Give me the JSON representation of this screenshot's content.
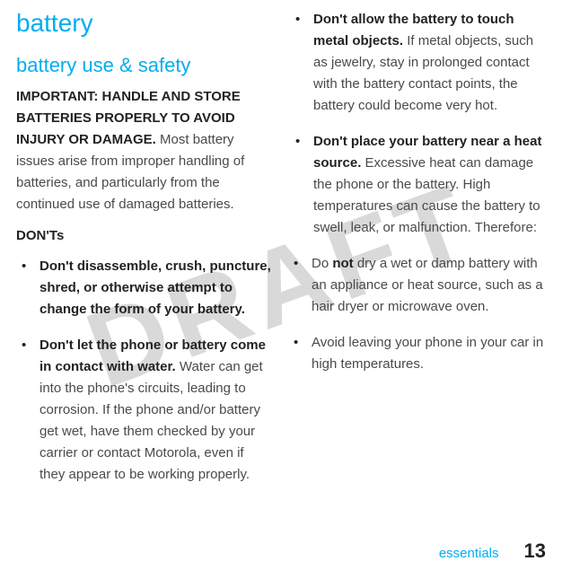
{
  "watermark": "DRAFT",
  "title": "battery",
  "subtitle": "battery use & safety",
  "intro_bold": "IMPORTANT: HANDLE AND STORE BATTERIES PROPERLY TO AVOID INJURY OR DAMAGE.",
  "intro_rest": " Most battery issues arise from improper handling of batteries, and particularly from the continued use of damaged batteries.",
  "donts_label": "DON'Ts",
  "left_bullets": [
    {
      "bold": "Don't disassemble, crush, puncture, shred, or otherwise attempt to change the form of your battery.",
      "rest": ""
    },
    {
      "bold": "Don't let the phone or battery come in contact with water.",
      "rest": " Water can get into the phone's circuits, leading to corrosion. If the phone and/or battery get wet, have them checked by your carrier or contact Motorola, even if they appear to be working properly."
    }
  ],
  "right_bullets": [
    {
      "bold": "Don't allow the battery to touch metal objects.",
      "rest": " If metal objects, such as jewelry, stay in prolonged contact with the battery contact points, the battery could become very hot."
    },
    {
      "bold": "Don't place your battery near a heat source.",
      "rest": " Excessive heat can damage the phone or the battery. High temperatures can cause the battery to swell, leak, or malfunction. Therefore:"
    }
  ],
  "nested_bullets": [
    {
      "pre": "Do ",
      "bold": "not",
      "rest": " dry a wet or damp battery with an appliance or heat source, such as a hair dryer or microwave oven."
    },
    {
      "pre": "",
      "bold": "",
      "rest": "Avoid leaving your phone in your car in high temperatures."
    }
  ],
  "footer_label": "essentials",
  "footer_num": "13",
  "colors": {
    "accent": "#00aeef",
    "text": "#4a4a4a",
    "bold_text": "#222222",
    "watermark": "#d9d9d9",
    "background": "#ffffff"
  }
}
